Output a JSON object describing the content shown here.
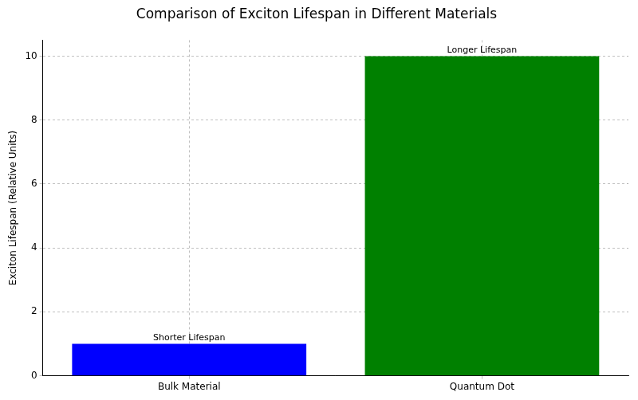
{
  "chart_data": {
    "type": "bar",
    "title": "Comparison of Exciton Lifespan in Different Materials",
    "y_label": "Exciton Lifespan (Relative Units)",
    "categories": [
      "Bulk Material",
      "Quantum Dot"
    ],
    "values": [
      1,
      10
    ],
    "colors": [
      "#0000ff",
      "#008000"
    ],
    "annotations": [
      "Shorter Lifespan",
      "Longer Lifespan"
    ],
    "ylim": [
      0,
      10.5
    ],
    "yticks": [
      0,
      2,
      4,
      6,
      8,
      10
    ],
    "grid": true
  }
}
